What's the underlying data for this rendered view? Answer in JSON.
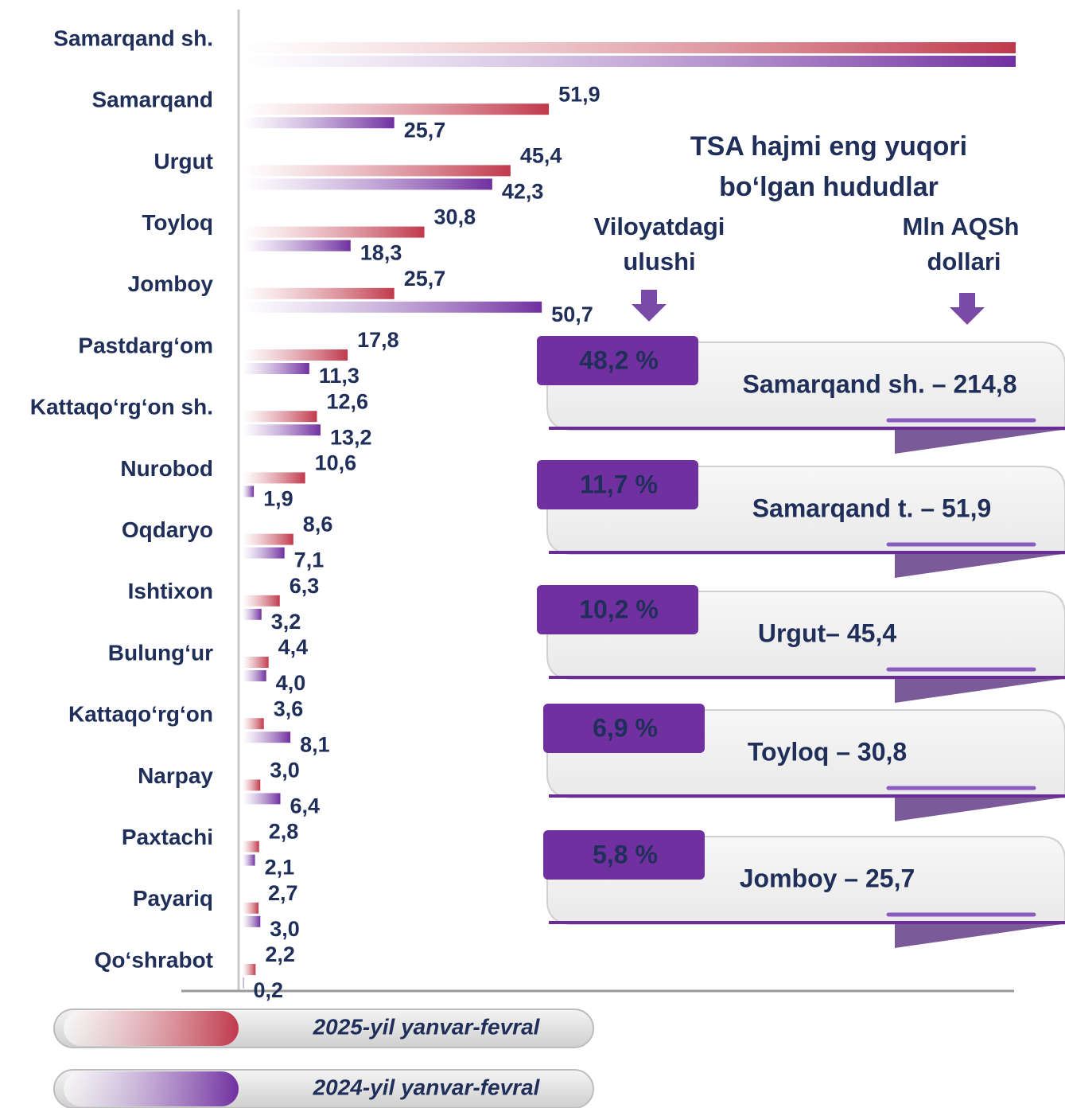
{
  "chart_data": {
    "type": "bar",
    "orientation": "horizontal",
    "categories": [
      "Samarqand sh.",
      "Samarqand",
      "Urgut",
      "Toyloq",
      "Jomboy",
      "Pastdarg‘om",
      "Kattaqo‘rg‘on sh.",
      "Nurobod",
      "Oqdaryo",
      "Ishtixon",
      "Bulung‘ur",
      "Kattaqo‘rg‘on",
      "Narpay",
      "Paxtachi",
      "Payariq",
      "Qo‘shrabot"
    ],
    "series": [
      {
        "name": "2025-yil yanvar-fevral",
        "color": "#c0394b",
        "values": [
          131,
          51.9,
          45.4,
          30.8,
          25.7,
          17.8,
          12.6,
          10.6,
          8.6,
          6.3,
          4.4,
          3.6,
          3.0,
          2.8,
          2.7,
          2.2
        ],
        "value_labels": [
          null,
          "51,9",
          "45,4",
          "30,8",
          "25,7",
          "17,8",
          "12,6",
          "10,6",
          "8,6",
          "6,3",
          "4,4",
          "3,6",
          "3,0",
          "2,8",
          "2,7",
          "2,2"
        ]
      },
      {
        "name": "2024-yil yanvar-fevral",
        "color": "#7030a0",
        "values": [
          131,
          25.7,
          42.3,
          18.3,
          50.7,
          11.3,
          13.2,
          1.9,
          7.1,
          3.2,
          4.0,
          8.1,
          6.4,
          2.1,
          3.0,
          0.2
        ],
        "value_labels": [
          null,
          "25,7",
          "42,3",
          "18,3",
          "50,7",
          "11,3",
          "13,2",
          "1,9",
          "7,1",
          "3,2",
          "4,0",
          "8,1",
          "6,4",
          "2,1",
          "3,0",
          "0,2"
        ]
      }
    ],
    "xlim": [
      0,
      131
    ]
  },
  "panel": {
    "title": [
      "TSA hajmi eng yuqori",
      "bo‘lgan hududlar"
    ],
    "column_labels": [
      [
        "Viloyatdagi",
        "ulushi"
      ],
      [
        "Mln AQSh",
        "dollari"
      ]
    ],
    "cards": [
      {
        "share": "48,2 %",
        "label": "Samarqand sh. – 214,8"
      },
      {
        "share": "11,7 %",
        "label": "Samarqand t. – 51,9"
      },
      {
        "share": "10,2 %",
        "label": "Urgut– 45,4"
      },
      {
        "share": "6,9 %",
        "label": "Toyloq – 30,8"
      },
      {
        "share": "5,8 %",
        "label": "Jomboy – 25,7"
      }
    ]
  }
}
